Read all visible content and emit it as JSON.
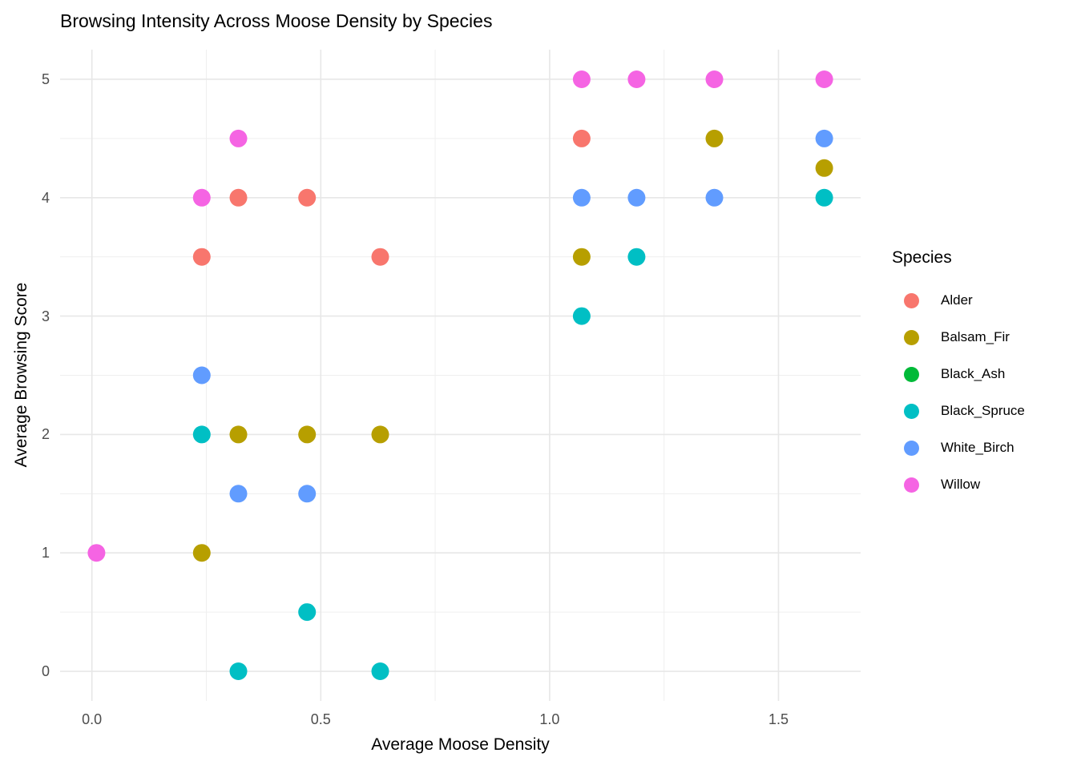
{
  "title": "Browsing Intensity Across Moose Density by Species",
  "legend": {
    "title": "Species"
  },
  "colors": {
    "background": "#FFFFFF",
    "grid_major": "#E7E7E7",
    "grid_minor": "#EFEFEF",
    "axis_tick_text": "#4D4D4D",
    "title_text": "#000000"
  },
  "chart_data": {
    "type": "scatter",
    "title": "Browsing Intensity Across Moose Density by Species",
    "xlabel": "Average Moose Density",
    "ylabel": "Average Browsing Score",
    "xlim": [
      -0.0695,
      1.6795
    ],
    "ylim": [
      -0.25,
      5.25
    ],
    "x_ticks": [
      0.0,
      0.5,
      1.0,
      1.5
    ],
    "x_tick_labels": [
      "0.0",
      "0.5",
      "1.0",
      "1.5"
    ],
    "x_minor": [
      0.25,
      0.75,
      1.25
    ],
    "y_ticks": [
      0,
      1,
      2,
      3,
      4,
      5
    ],
    "y_tick_labels": [
      "0",
      "1",
      "2",
      "3",
      "4",
      "5"
    ],
    "y_minor": [
      0.5,
      1.5,
      2.5,
      3.5,
      4.5
    ],
    "grid": true,
    "legend_position": "right",
    "point_radius": 11,
    "series": [
      {
        "name": "Alder",
        "color": "#F8766D",
        "points": [
          [
            0.24,
            3.5
          ],
          [
            0.32,
            4.0
          ],
          [
            0.47,
            4.0
          ],
          [
            0.63,
            3.5
          ],
          [
            1.07,
            4.5
          ]
        ]
      },
      {
        "name": "Balsam_Fir",
        "color": "#B79F00",
        "points": [
          [
            0.24,
            1.0
          ],
          [
            0.32,
            2.0
          ],
          [
            0.47,
            2.0
          ],
          [
            0.63,
            2.0
          ],
          [
            1.07,
            3.5
          ],
          [
            1.36,
            4.5
          ],
          [
            1.6,
            4.25
          ]
        ]
      },
      {
        "name": "Black_Ash",
        "color": "#00BA38",
        "points": []
      },
      {
        "name": "Black_Spruce",
        "color": "#00BFC4",
        "points": [
          [
            0.24,
            2.0
          ],
          [
            0.32,
            0.0
          ],
          [
            0.47,
            0.5
          ],
          [
            0.63,
            0.0
          ],
          [
            1.07,
            3.0
          ],
          [
            1.19,
            3.5
          ],
          [
            1.6,
            4.0
          ]
        ]
      },
      {
        "name": "White_Birch",
        "color": "#619CFF",
        "points": [
          [
            0.24,
            2.5
          ],
          [
            0.32,
            1.5
          ],
          [
            0.47,
            1.5
          ],
          [
            1.07,
            4.0
          ],
          [
            1.19,
            4.0
          ],
          [
            1.36,
            4.0
          ],
          [
            1.6,
            4.5
          ]
        ]
      },
      {
        "name": "Willow",
        "color": "#F564E3",
        "points": [
          [
            0.01,
            1.0
          ],
          [
            0.24,
            4.0
          ],
          [
            0.32,
            4.5
          ],
          [
            1.07,
            5.0
          ],
          [
            1.19,
            5.0
          ],
          [
            1.36,
            5.0
          ],
          [
            1.6,
            5.0
          ]
        ]
      }
    ]
  }
}
